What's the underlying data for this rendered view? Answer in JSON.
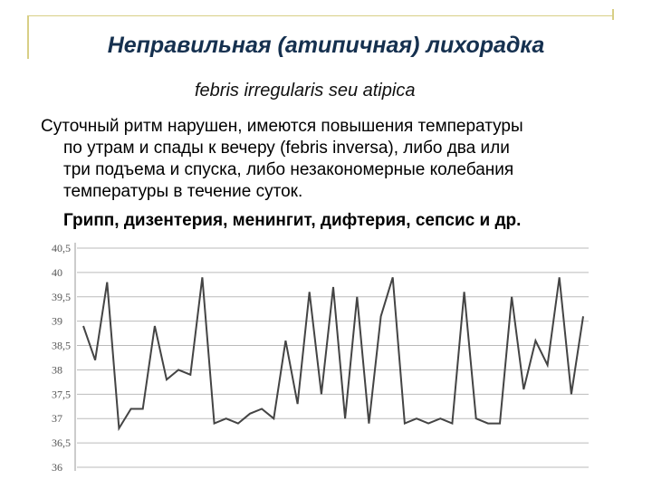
{
  "slide": {
    "title": "Неправильная (атипичная) лихорадка",
    "subtitle": "febris irregularis seu atipica",
    "body_lines": [
      "Суточный ритм нарушен, имеются повышения температуры",
      "по утрам и спады к вечеру (febris inversa), либо два или",
      "три подъема и спуска, либо незакономерные колебания",
      "температуры в течение суток."
    ],
    "diseases": "Грипп, дизентерия, менингит, дифтерия, сепсис и др."
  },
  "colors": {
    "title": "#15304f",
    "accent_lines": "#d8cf86",
    "chart_line": "#444444",
    "gridlines": "#bbbbbb"
  },
  "chart_data": {
    "type": "line",
    "title": "",
    "xlabel": "",
    "ylabel": "",
    "y_ticks": [
      "40,5",
      "40",
      "39,5",
      "39",
      "38,5",
      "38",
      "37,5",
      "37",
      "36,5",
      "36"
    ],
    "ylim": [
      36,
      40.5
    ],
    "grid": true,
    "series": [
      {
        "values": [
          38.9,
          38.2,
          39.8,
          36.8,
          37.2,
          37.2,
          38.9,
          37.8,
          38.0,
          37.9,
          39.9,
          36.9,
          37.0,
          36.9,
          37.1,
          37.2,
          37.0,
          38.6,
          37.3,
          39.6,
          37.5,
          39.7,
          37.0,
          39.5,
          36.9,
          39.1,
          39.9,
          36.9,
          37.0,
          36.9,
          37.0,
          36.9,
          39.6,
          37.0,
          36.9,
          36.9,
          39.5,
          37.6,
          38.6,
          38.1,
          39.9,
          37.5,
          39.1
        ]
      }
    ]
  }
}
